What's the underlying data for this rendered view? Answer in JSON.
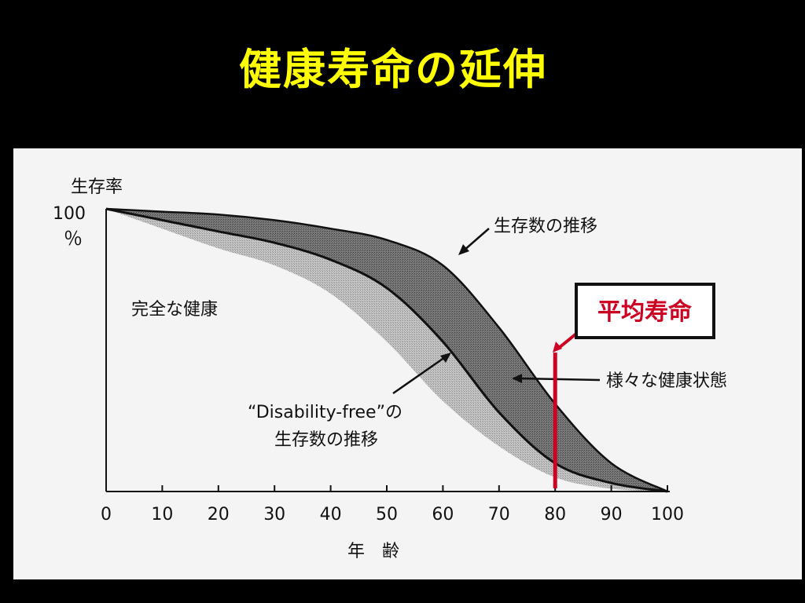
{
  "slide": {
    "title": "健康寿命の延伸",
    "title_color": "#FFFF00",
    "background": "#000000"
  },
  "chart_data": {
    "type": "area",
    "x": [
      0,
      10,
      20,
      30,
      40,
      50,
      60,
      70,
      80,
      90,
      100
    ],
    "series": [
      {
        "name": "生存数の推移",
        "values": [
          100,
          99,
          98,
          96,
          93,
          89,
          80,
          58,
          31,
          10,
          0
        ]
      },
      {
        "name": "“Disability-free” の生存数の推移",
        "values": [
          100,
          96,
          92,
          88,
          82,
          72,
          53,
          28,
          10,
          3,
          0
        ]
      },
      {
        "values": [
          100,
          93,
          86,
          80,
          70,
          53,
          32,
          16,
          5,
          1,
          0
        ]
      }
    ],
    "ylabel_line1": "生存率",
    "ytick_top": "100",
    "ytick_unit": "％",
    "xlabel": "年　齢",
    "xlim": [
      0,
      100
    ],
    "ylim": [
      0,
      100
    ],
    "xticks": [
      "0",
      "10",
      "20",
      "30",
      "40",
      "50",
      "60",
      "70",
      "80",
      "90",
      "100"
    ],
    "annotations": {
      "healthy_region": "完全な健康",
      "survival_label": "生存数の推移",
      "various_health": "様々な健康状態",
      "disability_line1": "“Disability-free”の",
      "disability_line2": "生存数の推移",
      "life_expectancy": "平均寿命"
    },
    "life_expectancy_age": 80,
    "colors": {
      "dark_band": "#6e6e6e",
      "light_band": "#b4b4b4",
      "highlight": "#cc0022"
    }
  }
}
